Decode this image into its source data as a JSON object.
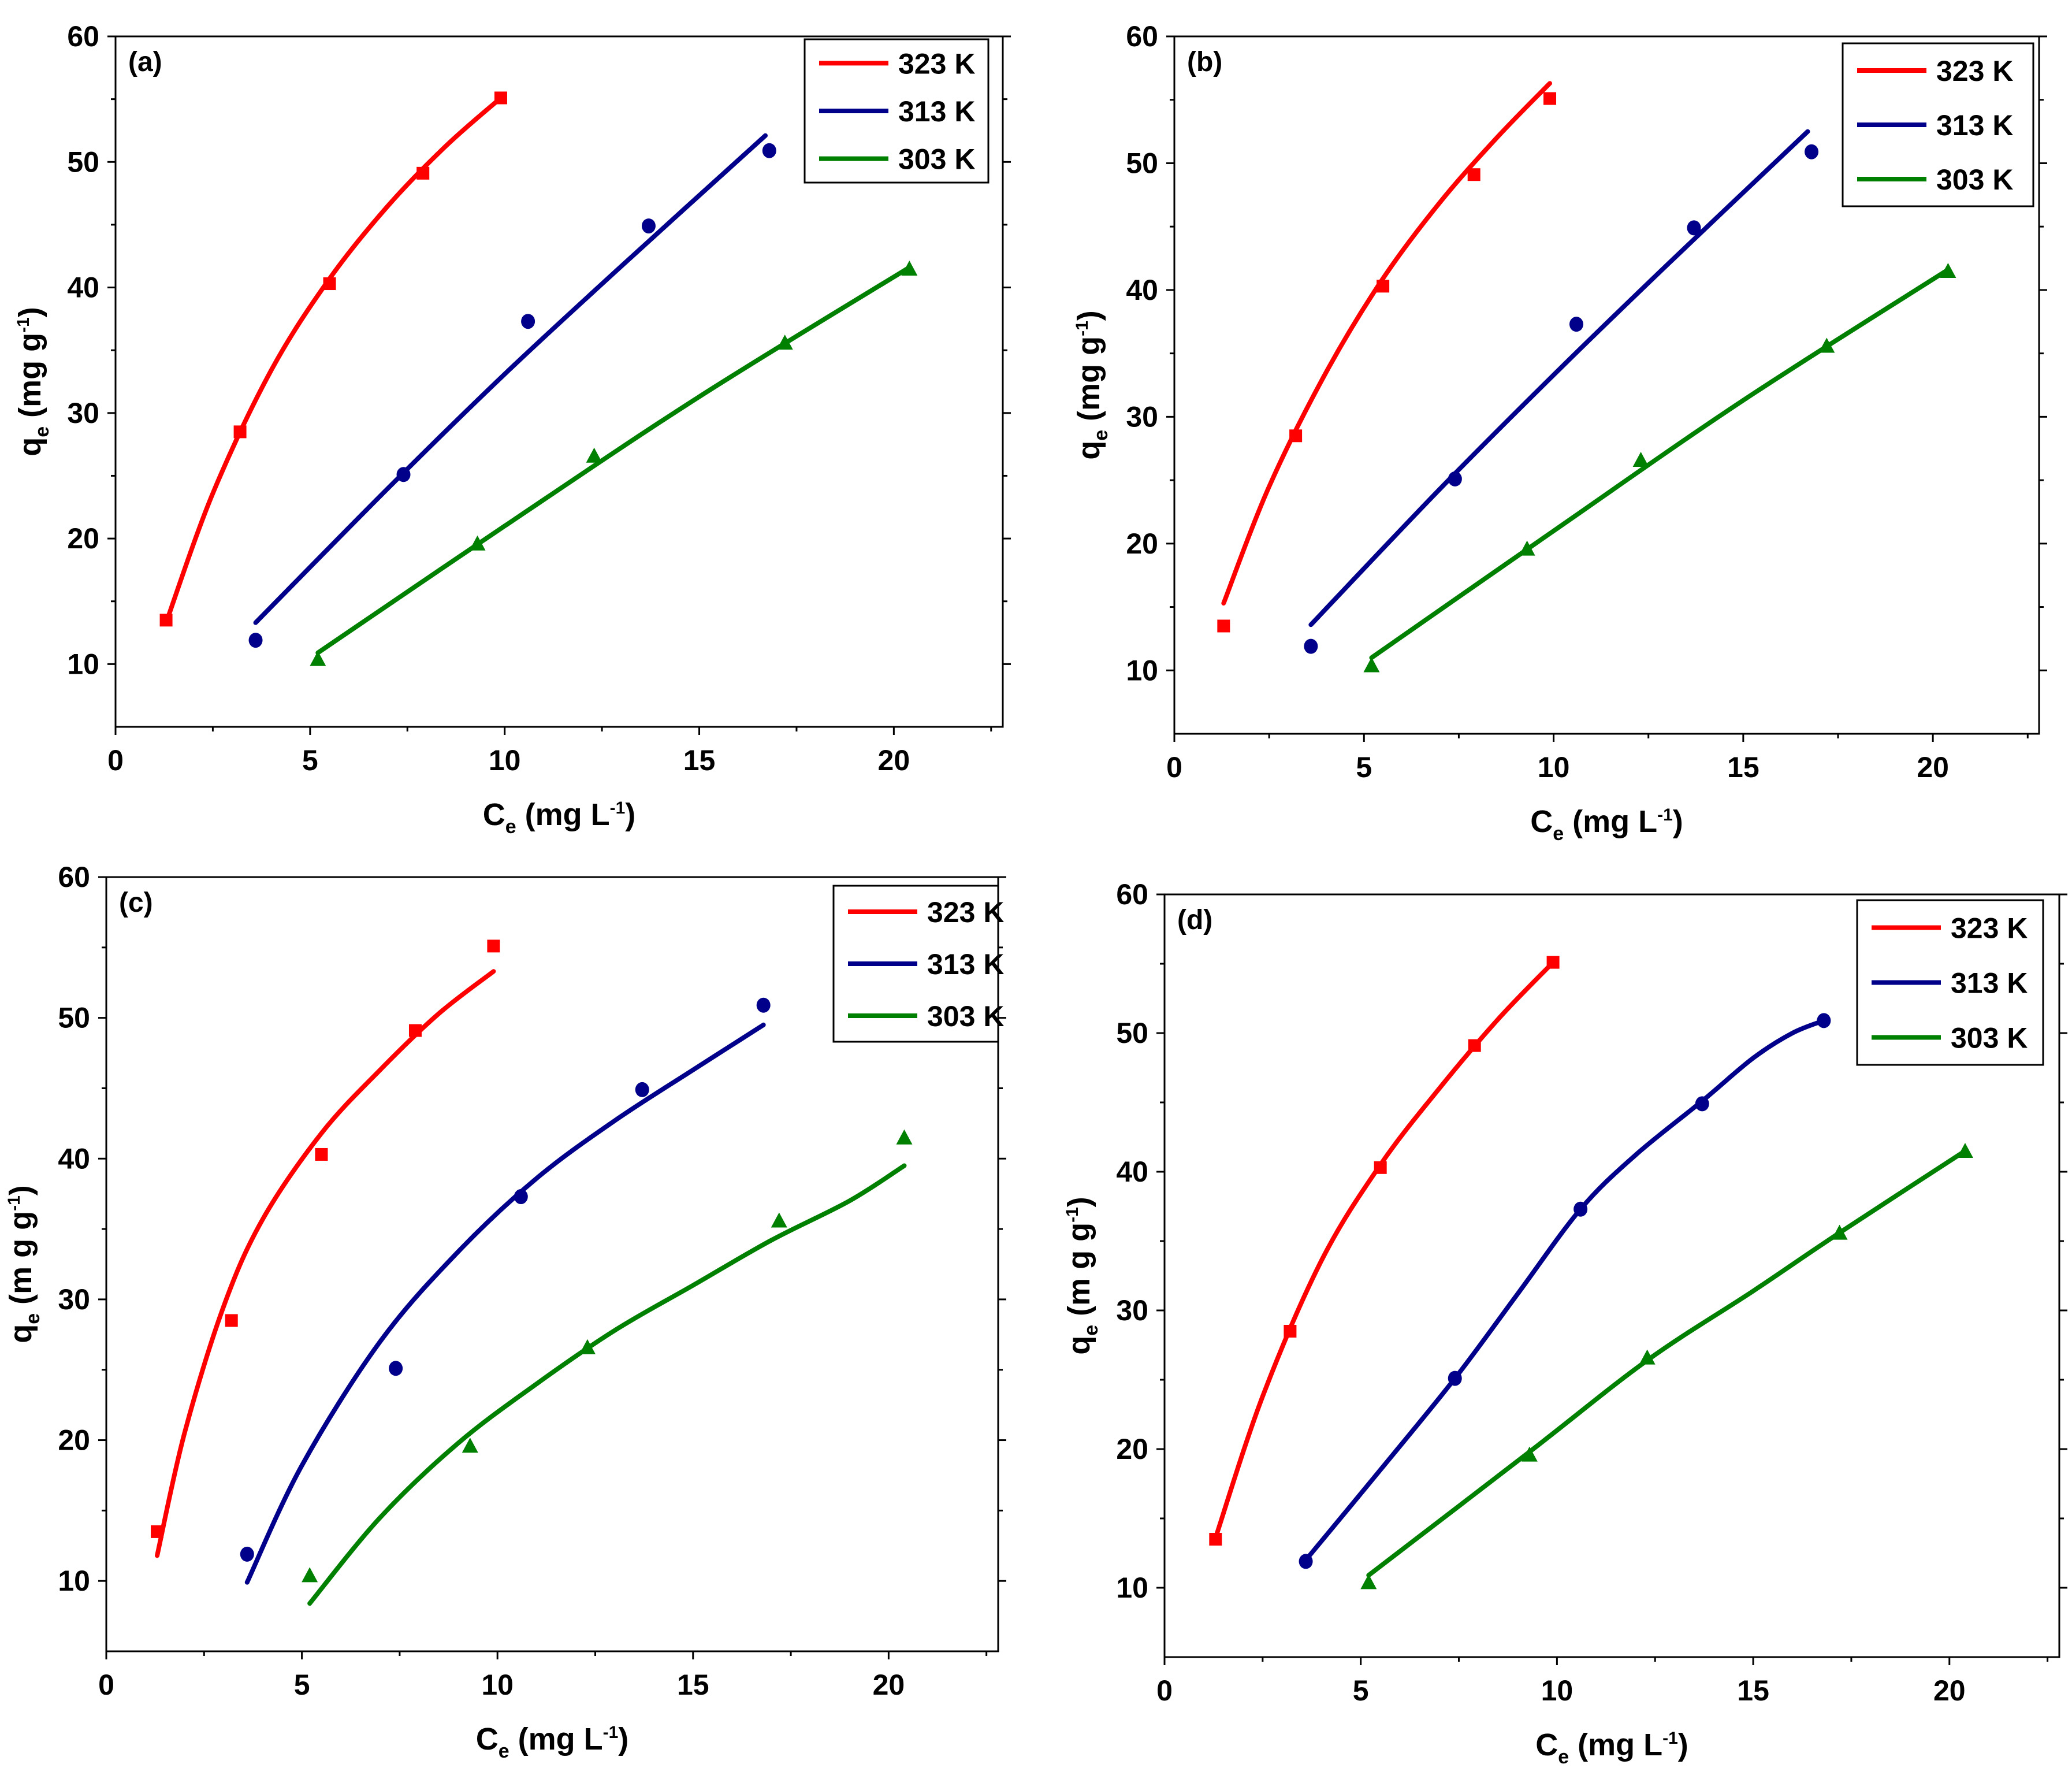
{
  "chart_data": [
    {
      "type": "scatter",
      "panel_label": "(a)",
      "xlabel": "C",
      "xlabel_sub": "e",
      "xlabel_unit": " (mg L",
      "xlabel_sup": "-1",
      "xlabel_close": ")",
      "ylabel": "q",
      "ylabel_sub": "e",
      "ylabel_unit": " (mg g",
      "ylabel_sup": "-1",
      "ylabel_close": ")",
      "xlim": [
        0,
        22.8
      ],
      "ylim": [
        5,
        60
      ],
      "xticks": [
        "0",
        "5",
        "10",
        "15",
        "20"
      ],
      "xtick_values": [
        0,
        5,
        10,
        15,
        20
      ],
      "yticks": [
        "10",
        "20",
        "30",
        "40",
        "50",
        "60"
      ],
      "ytick_values": [
        10,
        20,
        30,
        40,
        50,
        60
      ],
      "legend_position": "top-right",
      "series": [
        {
          "name": "323 K",
          "color": "#ff0000",
          "marker": "square",
          "x": [
            1.3,
            3.2,
            5.5,
            7.9,
            9.9
          ],
          "y": [
            13.5,
            28.5,
            40.3,
            49.1,
            55.1
          ],
          "fit_x": [
            1.3,
            2.5,
            4.0,
            5.5,
            7.0,
            8.5,
            9.9
          ],
          "fit_y": [
            13.3,
            23.6,
            33.4,
            40.7,
            46.5,
            51.3,
            55.1
          ]
        },
        {
          "name": "313 K",
          "color": "#00008b",
          "marker": "circle",
          "x": [
            3.6,
            7.4,
            10.6,
            13.7,
            16.8
          ],
          "y": [
            11.9,
            25.1,
            37.3,
            44.9,
            50.9
          ],
          "fit_x": [
            3.6,
            7.0,
            10.0,
            13.0,
            16.7
          ],
          "fit_y": [
            13.3,
            24.0,
            33.1,
            41.7,
            52.1
          ]
        },
        {
          "name": "303 K",
          "color": "#008000",
          "marker": "triangle",
          "x": [
            5.2,
            9.3,
            12.3,
            17.2,
            20.4
          ],
          "y": [
            10.4,
            19.6,
            26.6,
            35.6,
            41.5
          ],
          "fit_x": [
            5.2,
            10.0,
            15.0,
            20.4
          ],
          "fit_y": [
            10.9,
            21.0,
            31.3,
            41.6
          ]
        }
      ]
    },
    {
      "type": "scatter",
      "panel_label": "(b)",
      "xlabel": "C",
      "xlabel_sub": "e",
      "xlabel_unit": " (mg L",
      "xlabel_sup": "-1",
      "xlabel_close": ")",
      "ylabel": "q",
      "ylabel_sub": "e",
      "ylabel_unit": "  (mg g",
      "ylabel_sup": "-1",
      "ylabel_close": ")",
      "xlim": [
        0,
        22.8
      ],
      "ylim": [
        5,
        60
      ],
      "xticks": [
        "0",
        "5",
        "10",
        "15",
        "20"
      ],
      "xtick_values": [
        0,
        5,
        10,
        15,
        20
      ],
      "yticks": [
        "10",
        "20",
        "30",
        "40",
        "50",
        "60"
      ],
      "ytick_values": [
        10,
        20,
        30,
        40,
        50,
        60
      ],
      "legend_position": "top-right",
      "series": [
        {
          "name": "323 K",
          "color": "#ff0000",
          "marker": "square",
          "x": [
            1.3,
            3.2,
            5.5,
            7.9,
            9.9
          ],
          "y": [
            13.5,
            28.5,
            40.3,
            49.1,
            55.1
          ],
          "fit_x": [
            1.3,
            2.5,
            4.0,
            5.5,
            7.0,
            8.5,
            9.9
          ],
          "fit_y": [
            15.3,
            24.5,
            33.5,
            40.9,
            46.9,
            52.0,
            56.3
          ]
        },
        {
          "name": "313 K",
          "color": "#00008b",
          "marker": "circle",
          "x": [
            3.6,
            7.4,
            10.6,
            13.7,
            16.8
          ],
          "y": [
            11.9,
            25.1,
            37.3,
            44.9,
            50.9
          ],
          "fit_x": [
            3.6,
            7.0,
            10.0,
            13.0,
            16.7
          ],
          "fit_y": [
            13.6,
            24.3,
            33.3,
            42.0,
            52.5
          ]
        },
        {
          "name": "303 K",
          "color": "#008000",
          "marker": "triangle",
          "x": [
            5.2,
            9.3,
            12.3,
            17.2,
            20.4
          ],
          "y": [
            10.4,
            19.6,
            26.6,
            35.6,
            41.5
          ],
          "fit_x": [
            5.2,
            10.0,
            15.0,
            20.4
          ],
          "fit_y": [
            11.0,
            21.0,
            31.3,
            41.6
          ]
        }
      ]
    },
    {
      "type": "scatter",
      "panel_label": "(c)",
      "xlabel": "C",
      "xlabel_sub": "e",
      "xlabel_unit": " (mg L",
      "xlabel_sup": "-1",
      "xlabel_close": ")",
      "ylabel": "q",
      "ylabel_sub": "e",
      "ylabel_unit": " (m g g",
      "ylabel_sup": "-1",
      "ylabel_close": ")",
      "xlim": [
        0,
        22.8
      ],
      "ylim": [
        5,
        60
      ],
      "xticks": [
        "0",
        "5",
        "10",
        "15",
        "20"
      ],
      "xtick_values": [
        0,
        5,
        10,
        15,
        20
      ],
      "yticks": [
        "10",
        "20",
        "30",
        "40",
        "50",
        "60"
      ],
      "ytick_values": [
        10,
        20,
        30,
        40,
        50,
        60
      ],
      "legend_position": "top-right",
      "series": [
        {
          "name": "323 K",
          "color": "#ff0000",
          "marker": "square",
          "x": [
            1.3,
            3.2,
            5.5,
            7.9,
            9.9
          ],
          "y": [
            13.5,
            28.5,
            40.3,
            49.1,
            55.1
          ],
          "fit_x": [
            1.3,
            2.0,
            3.0,
            4.0,
            5.5,
            7.0,
            8.5,
            9.9
          ],
          "fit_y": [
            11.8,
            20.5,
            29.5,
            35.7,
            41.8,
            46.3,
            50.3,
            53.3
          ]
        },
        {
          "name": "313 K",
          "color": "#00008b",
          "marker": "circle",
          "x": [
            3.6,
            7.4,
            10.6,
            13.7,
            16.8
          ],
          "y": [
            11.9,
            25.1,
            37.3,
            44.9,
            50.9
          ],
          "fit_x": [
            3.6,
            5.0,
            7.0,
            9.0,
            11.0,
            13.0,
            15.0,
            16.8
          ],
          "fit_y": [
            9.9,
            18.2,
            27.0,
            33.4,
            38.6,
            42.7,
            46.3,
            49.5
          ]
        },
        {
          "name": "303 K",
          "color": "#008000",
          "marker": "triangle",
          "x": [
            5.2,
            9.3,
            12.3,
            17.2,
            20.4
          ],
          "y": [
            10.4,
            19.6,
            26.6,
            35.6,
            41.5
          ],
          "fit_x": [
            5.2,
            7.0,
            9.0,
            11.0,
            13.0,
            15.0,
            17.0,
            19.0,
            20.4
          ],
          "fit_y": [
            8.4,
            14.5,
            19.8,
            24.0,
            27.8,
            31.0,
            34.2,
            37.0,
            39.5
          ]
        }
      ]
    },
    {
      "type": "scatter",
      "panel_label": "(d)",
      "xlabel": "C",
      "xlabel_sub": "e",
      "xlabel_unit": " (mg L",
      "xlabel_sup": "-1",
      "xlabel_close": ")",
      "ylabel": "q",
      "ylabel_sub": "e",
      "ylabel_unit": "  (m g g",
      "ylabel_sup": "-1",
      "ylabel_close": ")",
      "xlim": [
        0,
        22.8
      ],
      "ylim": [
        5,
        60
      ],
      "xticks": [
        "0",
        "5",
        "10",
        "15",
        "20"
      ],
      "xtick_values": [
        0,
        5,
        10,
        15,
        20
      ],
      "yticks": [
        "10",
        "20",
        "30",
        "40",
        "50",
        "60"
      ],
      "ytick_values": [
        10,
        20,
        30,
        40,
        50,
        60
      ],
      "legend_position": "top-right",
      "series": [
        {
          "name": "323 K",
          "color": "#ff0000",
          "marker": "square",
          "x": [
            1.3,
            3.2,
            5.5,
            7.9,
            9.9
          ],
          "y": [
            13.5,
            28.5,
            40.3,
            49.1,
            55.1
          ],
          "fit_x": [
            1.3,
            2.5,
            4.0,
            5.5,
            7.0,
            8.5,
            9.9
          ],
          "fit_y": [
            13.6,
            23.8,
            33.6,
            40.5,
            46.0,
            51.0,
            55.1
          ]
        },
        {
          "name": "313 K",
          "color": "#00008b",
          "marker": "circle",
          "x": [
            3.6,
            7.4,
            10.6,
            13.7,
            16.8
          ],
          "y": [
            11.9,
            25.1,
            37.3,
            44.9,
            50.9
          ],
          "fit_x": [
            3.6,
            5.5,
            7.4,
            9.0,
            10.6,
            12.0,
            13.7,
            15.0,
            16.0,
            16.8
          ],
          "fit_y": [
            12.0,
            18.5,
            25.1,
            31.2,
            37.3,
            41.2,
            45.1,
            48.2,
            50.0,
            50.9
          ]
        },
        {
          "name": "303 K",
          "color": "#008000",
          "marker": "triangle",
          "x": [
            5.2,
            9.3,
            12.3,
            17.2,
            20.4
          ],
          "y": [
            10.4,
            19.6,
            26.6,
            35.6,
            41.5
          ],
          "fit_x": [
            5.2,
            9.3,
            12.3,
            15.0,
            17.2,
            20.4
          ],
          "fit_y": [
            10.9,
            19.8,
            26.4,
            31.4,
            35.6,
            41.5
          ]
        }
      ]
    }
  ]
}
